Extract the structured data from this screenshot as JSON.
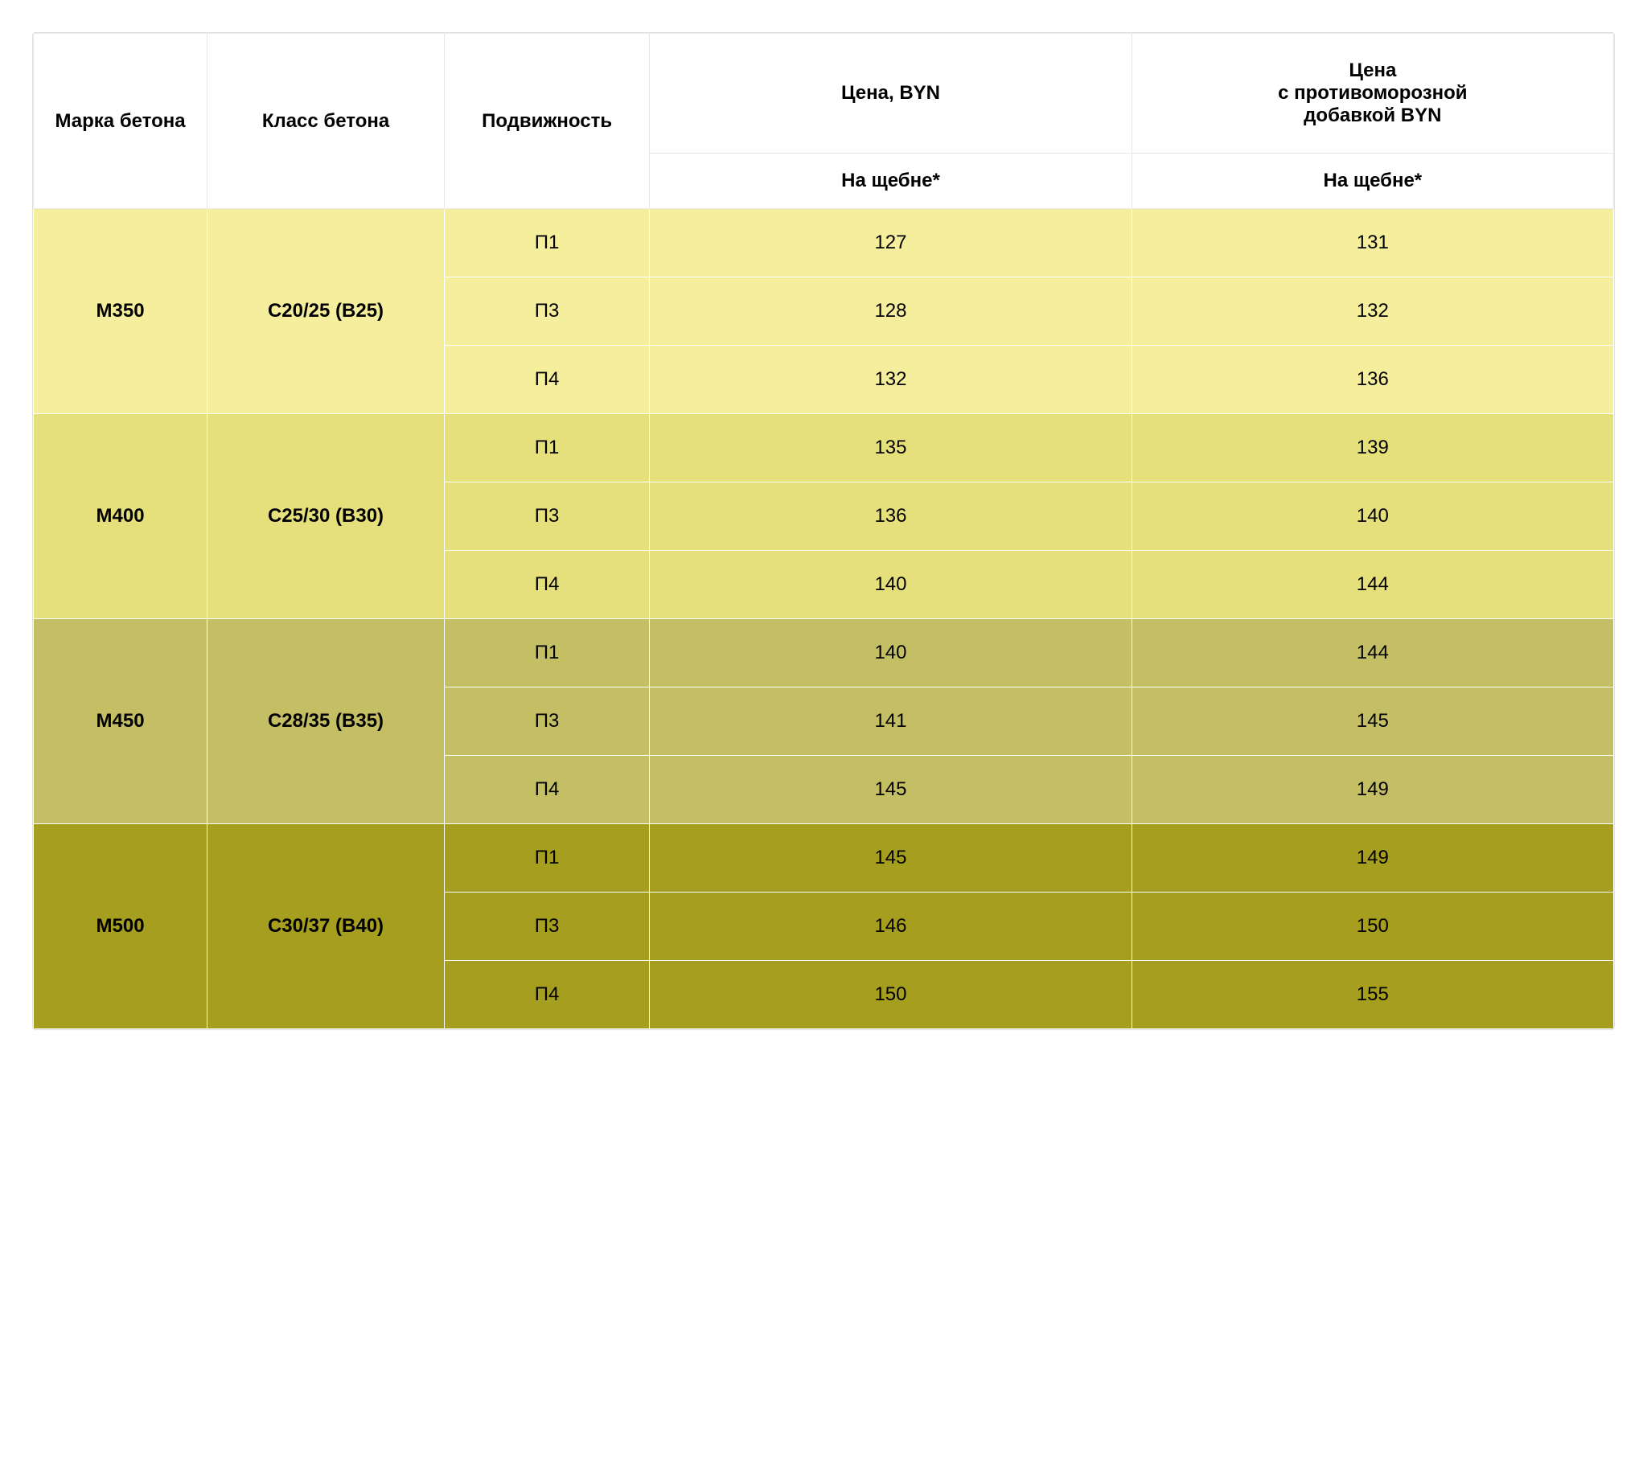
{
  "table": {
    "columns": {
      "marka": "Марка бетона",
      "klass": "Класс бетона",
      "podv": "Подвижность",
      "price": "Цена, BYN",
      "price_frost_l1": "Цена",
      "price_frost_l2": "с противоморозной",
      "price_frost_l3": "добавкой BYN",
      "sub_price": "На щебне*",
      "sub_price_frost": "На щебне*"
    },
    "col_widths": {
      "marka": "11%",
      "klass": "15%",
      "podv": "13%",
      "price": "30.5%",
      "price_frost": "30.5%"
    },
    "border_color": "#ffffff",
    "header_bg": "#ffffff",
    "header_border": "#e8e8e8",
    "text_color": "#000000",
    "font_size_pt": 18,
    "groups": [
      {
        "marka": "М350",
        "klass": "С20/25 (В25)",
        "bg": "#f5ef9d",
        "rows": [
          {
            "podv": "П1",
            "price": "127",
            "price_frost": "131"
          },
          {
            "podv": "П3",
            "price": "128",
            "price_frost": "132"
          },
          {
            "podv": "П4",
            "price": "132",
            "price_frost": "136"
          }
        ]
      },
      {
        "marka": "М400",
        "klass": "С25/30 (В30)",
        "bg": "#e6e07c",
        "rows": [
          {
            "podv": "П1",
            "price": "135",
            "price_frost": "139"
          },
          {
            "podv": "П3",
            "price": "136",
            "price_frost": "140"
          },
          {
            "podv": "П4",
            "price": "140",
            "price_frost": "144"
          }
        ]
      },
      {
        "marka": "М450",
        "klass": "С28/35 (В35)",
        "bg": "#c4bf65",
        "rows": [
          {
            "podv": "П1",
            "price": "140",
            "price_frost": "144"
          },
          {
            "podv": "П3",
            "price": "141",
            "price_frost": "145"
          },
          {
            "podv": "П4",
            "price": "145",
            "price_frost": "149"
          }
        ]
      },
      {
        "marka": "М500",
        "klass": "С30/37 (В40)",
        "bg": "#a69e1f",
        "rows": [
          {
            "podv": "П1",
            "price": "145",
            "price_frost": "149"
          },
          {
            "podv": "П3",
            "price": "146",
            "price_frost": "150"
          },
          {
            "podv": "П4",
            "price": "150",
            "price_frost": "155"
          }
        ]
      }
    ]
  }
}
